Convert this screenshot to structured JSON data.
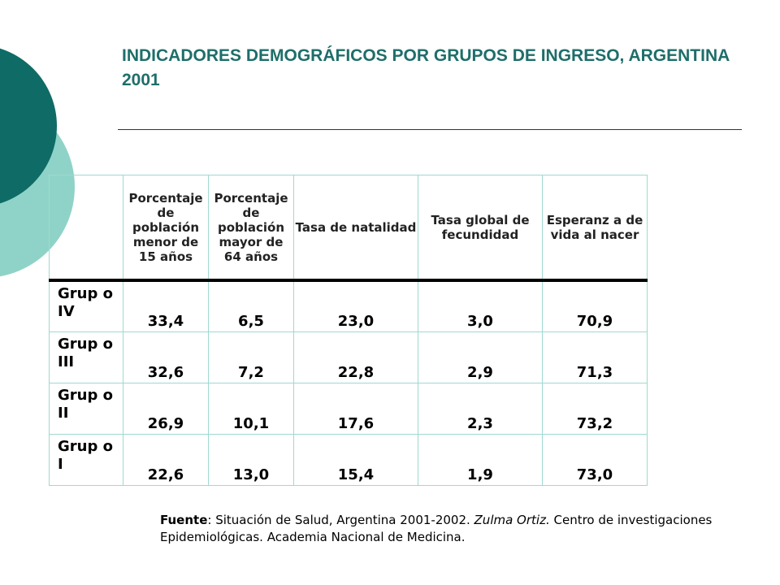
{
  "title": "INDICADORES DEMOGRÁFICOS POR GRUPOS DE INGRESO, ARGENTINA 2001",
  "colors": {
    "accent": "#1e6e6a",
    "circle_dark": "#0f6b66",
    "circle_light": "#8fd3c8",
    "grid": "#9fd9cf"
  },
  "table": {
    "corner": "",
    "columns": [
      "Porcentaje de población menor de 15 años",
      "Porcentaje de población mayor de 64 años",
      "Tasa de natalidad",
      "Tasa global de fecundidad",
      "Esperanz a de vida al nacer"
    ],
    "rows": [
      {
        "label": "Grup o IV",
        "values": [
          "33,4",
          "6,5",
          "23,0",
          "3,0",
          "70,9"
        ]
      },
      {
        "label": "Grup o III",
        "values": [
          "32,6",
          "7,2",
          "22,8",
          "2,9",
          "71,3"
        ]
      },
      {
        "label": "Grup o II",
        "values": [
          "26,9",
          "10,1",
          "17,6",
          "2,3",
          "73,2"
        ]
      },
      {
        "label": "Grup o I",
        "values": [
          "22,6",
          "13,0",
          "15,4",
          "1,9",
          "73,0"
        ]
      }
    ]
  },
  "source": {
    "label": "Fuente",
    "pre": ": Situación de Salud, Argentina 2001-2002. ",
    "author": "Zulma Ortiz.",
    "post": " Centro de investigaciones Epidemiológicas. Academia Nacional de Medicina."
  }
}
